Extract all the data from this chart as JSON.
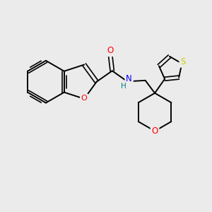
{
  "background_color": "#ebebeb",
  "bond_color": "#000000",
  "atom_colors": {
    "O": "#ff0000",
    "N": "#0000ff",
    "S": "#cccc00",
    "H": "#008080"
  },
  "figsize": [
    3.0,
    3.0
  ],
  "dpi": 100,
  "xlim": [
    0,
    10
  ],
  "ylim": [
    0,
    10
  ]
}
